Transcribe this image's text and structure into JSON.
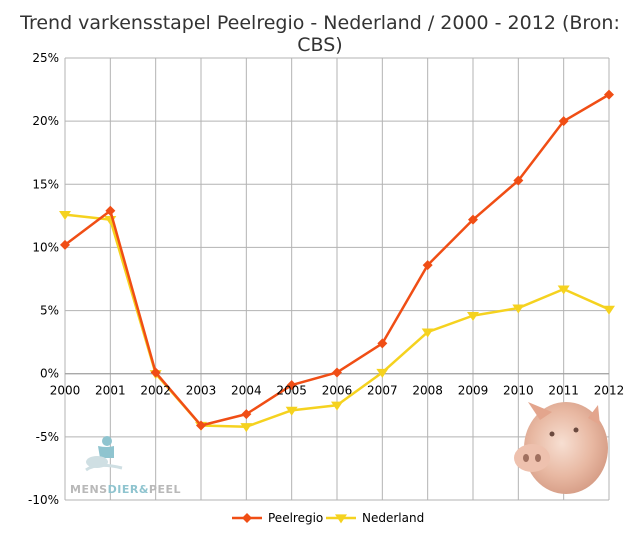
{
  "chart_data": {
    "type": "line",
    "title": "Trend varkensstapel Peelregio - Nederland / 2000 - 2012 (Bron: CBS)",
    "xlabel": "",
    "ylabel": "",
    "categories": [
      "2000",
      "2001",
      "2002",
      "2003",
      "2004",
      "2005",
      "2006",
      "2007",
      "2008",
      "2009",
      "2010",
      "2011",
      "2012"
    ],
    "ylim": [
      -10,
      25
    ],
    "yticks": [
      "-10%",
      "-5%",
      "0%",
      "5%",
      "10%",
      "15%",
      "20%",
      "25%"
    ],
    "ytick_values": [
      -10,
      -5,
      0,
      5,
      10,
      15,
      20,
      25
    ],
    "grid": true,
    "legend_position": "bottom",
    "series": [
      {
        "name": "Peelregio",
        "color": "#f04e15",
        "marker": "diamond",
        "values": [
          10.2,
          12.9,
          0.1,
          -4.1,
          -3.2,
          -0.9,
          0.1,
          2.4,
          8.6,
          12.2,
          15.3,
          20.0,
          22.1
        ]
      },
      {
        "name": "Nederland",
        "color": "#f5d21f",
        "marker": "triangle-down",
        "values": [
          12.6,
          12.2,
          0.0,
          -4.1,
          -4.2,
          -2.9,
          -2.5,
          0.1,
          3.3,
          4.6,
          5.2,
          6.7,
          5.1
        ]
      }
    ]
  },
  "logo": {
    "name": "MENSDIER&PEEL",
    "part1": "MENS",
    "part2": "DIER",
    "part3": "&",
    "part4": "PEEL",
    "icon": "person-with-animal-icon",
    "color": "#8fc4cf"
  },
  "decoration": {
    "icon": "pig-icon"
  }
}
